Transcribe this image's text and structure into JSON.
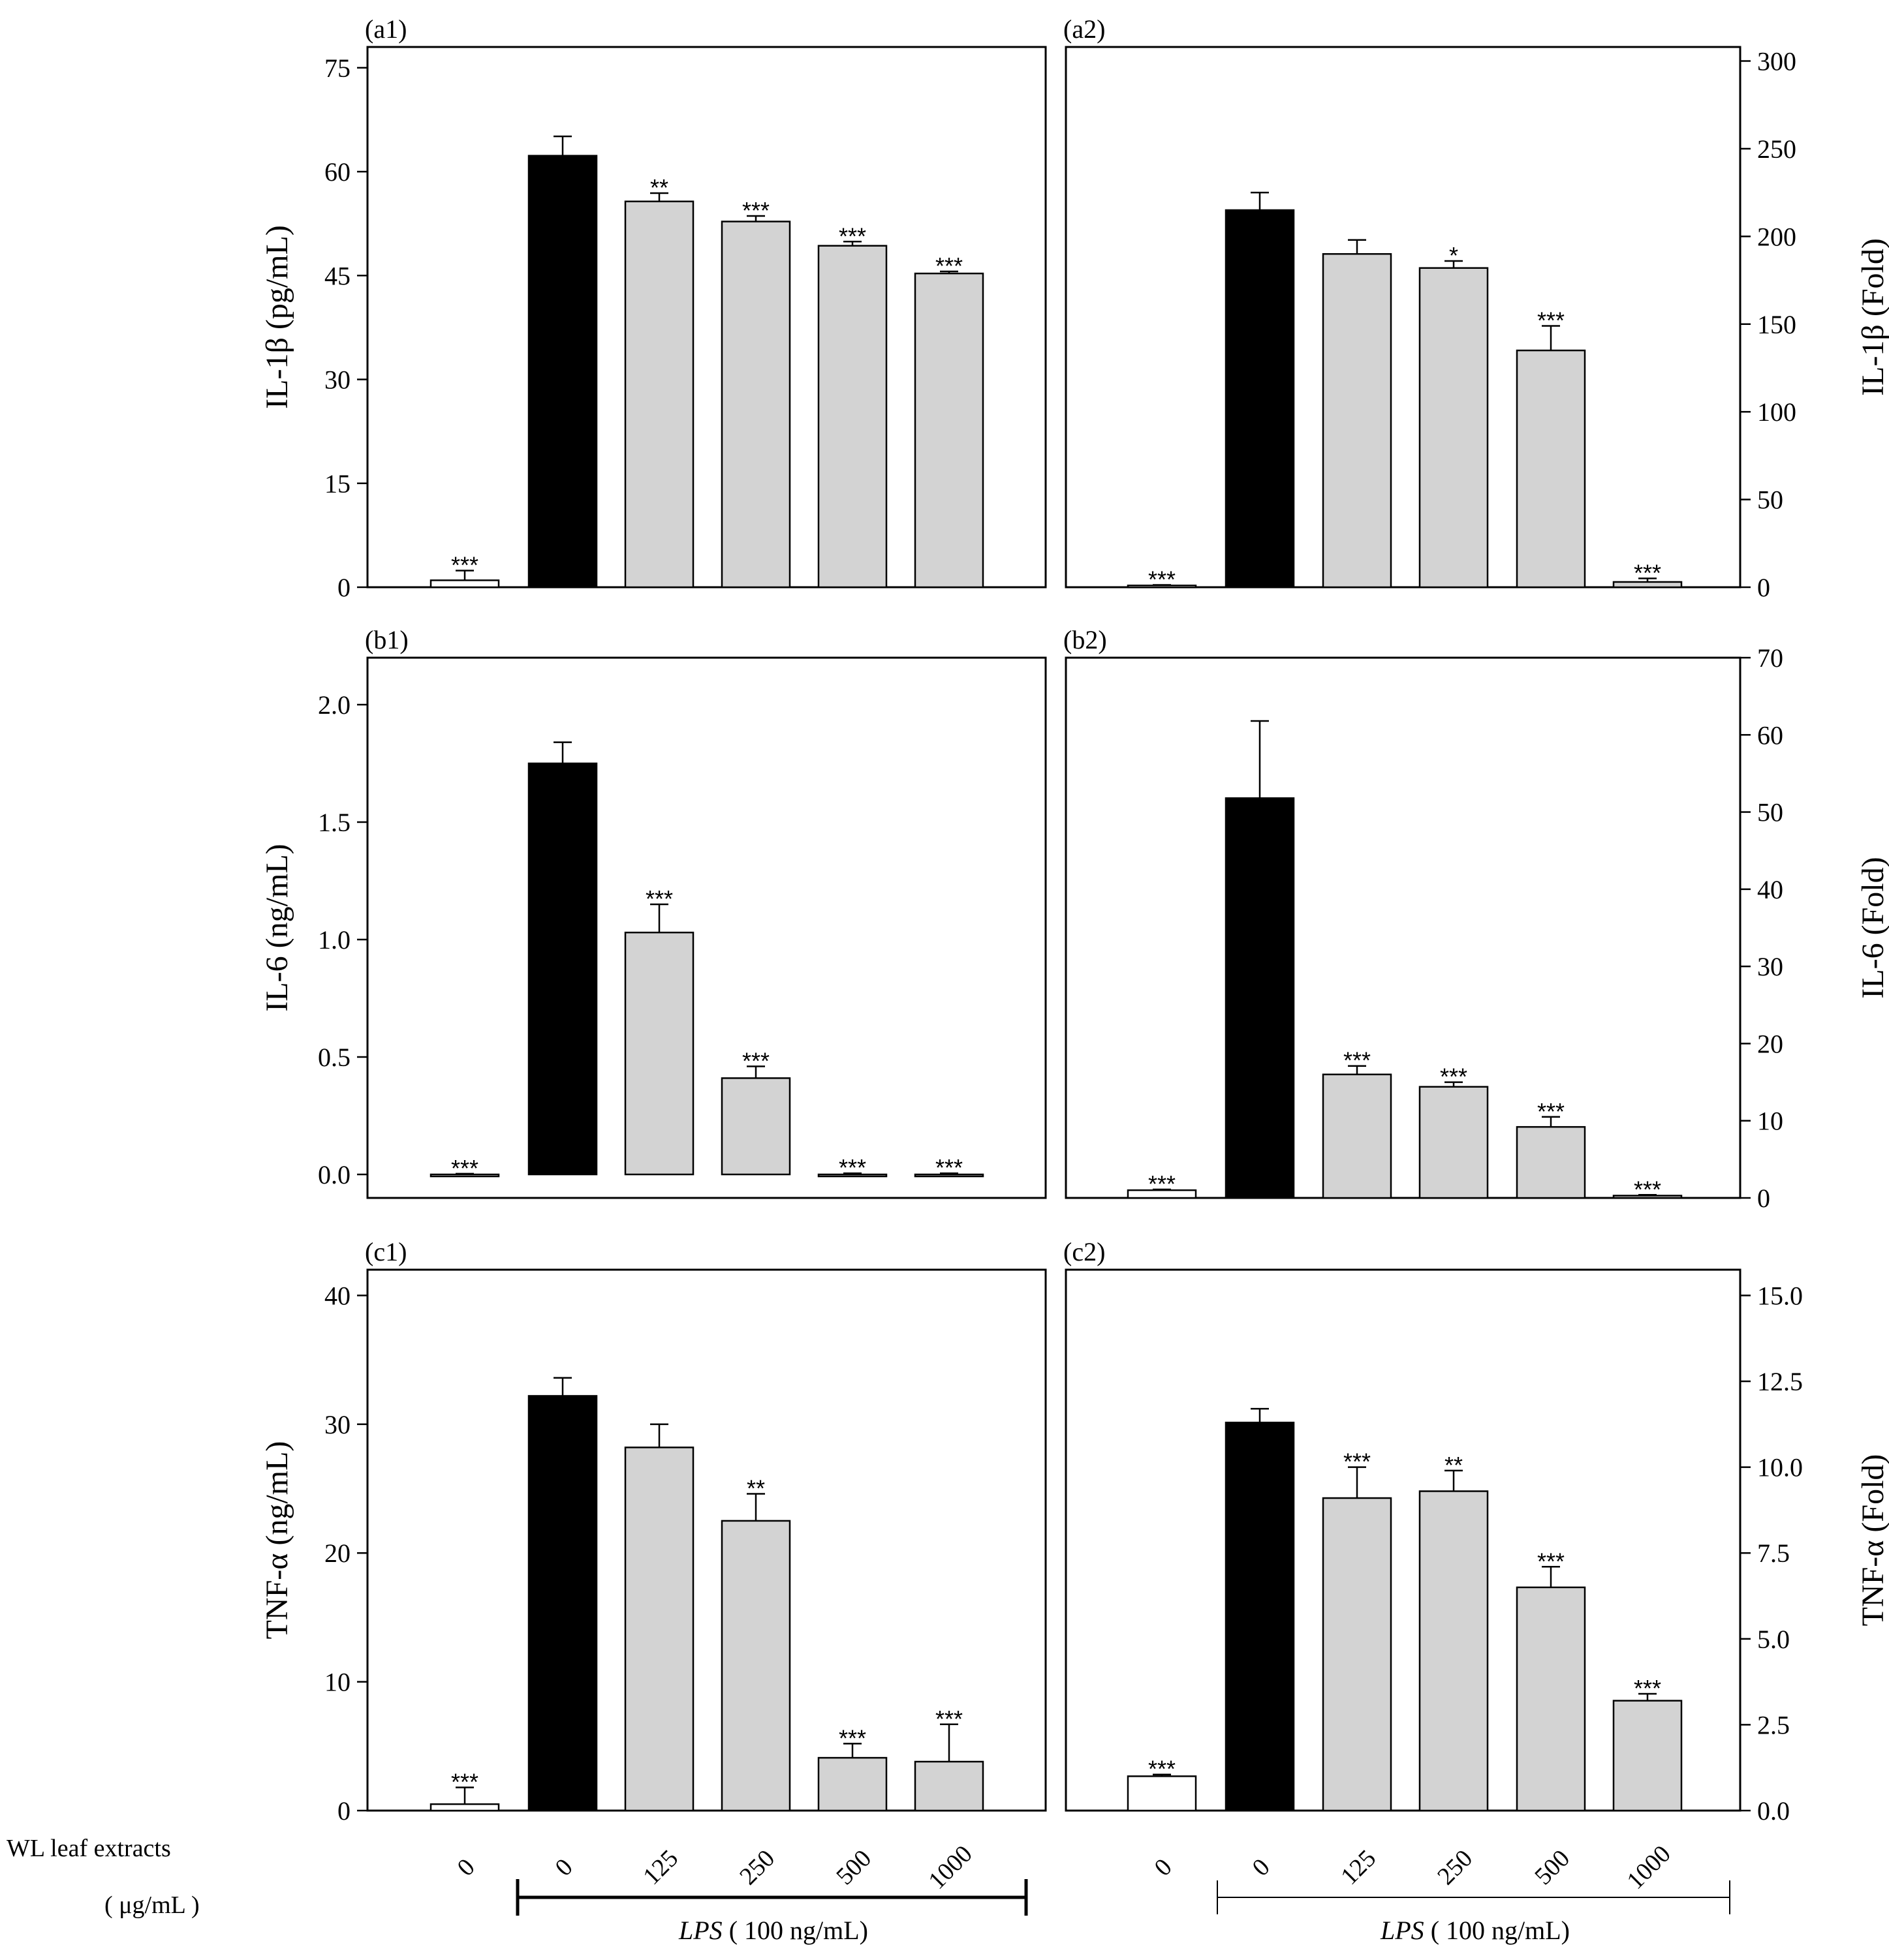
{
  "x_axis": {
    "categories": [
      "0",
      "0",
      "125",
      "250",
      "500",
      "1000"
    ],
    "row_label": "WL leaf extracts",
    "unit_label": "( μg/mL )",
    "lps_label_italic": "LPS",
    "lps_label_rest": "( 100 ng/mL)"
  },
  "colors": {
    "control": "#ffffff",
    "lps": "#000000",
    "treated": "#d3d3d3",
    "stroke": "#000000"
  },
  "chart_data": [
    {
      "type": "bar",
      "panel": "(a1)",
      "ylabel": "IL-1β (pg/mL)",
      "yaxis_side": "left",
      "ylim": [
        0,
        78
      ],
      "yticks": [
        0,
        15,
        30,
        45,
        60,
        75
      ],
      "tick_labels": [
        "0",
        "15",
        "30",
        "45",
        "60",
        "75"
      ],
      "categories": [
        "0",
        "0",
        "125",
        "250",
        "500",
        "1000"
      ],
      "values": [
        1.0,
        62.3,
        55.7,
        52.8,
        49.3,
        45.3
      ],
      "errors": [
        1.4,
        2.8,
        1.2,
        0.8,
        0.6,
        0.3
      ],
      "significance": [
        "***",
        "",
        "**",
        "***",
        "***",
        "***"
      ]
    },
    {
      "type": "bar",
      "panel": "(a2)",
      "ylabel": "IL-1β (Fold)",
      "yaxis_side": "right",
      "ylim": [
        0,
        308
      ],
      "yticks": [
        0,
        50,
        100,
        150,
        200,
        250,
        300
      ],
      "tick_labels": [
        "0",
        "50",
        "100",
        "150",
        "200",
        "250",
        "300"
      ],
      "categories": [
        "0",
        "0",
        "125",
        "250",
        "500",
        "1000"
      ],
      "values": [
        1.0,
        215,
        190,
        182,
        135,
        3.0
      ],
      "errors": [
        0.3,
        10,
        8,
        4,
        14,
        2
      ],
      "significance": [
        "***",
        "",
        "",
        "*",
        "***",
        "***"
      ]
    },
    {
      "type": "bar",
      "panel": "(b1)",
      "ylabel": "IL-6 (ng/mL)",
      "yaxis_side": "left",
      "ylim": [
        -0.1,
        2.2
      ],
      "yticks": [
        0.0,
        0.5,
        1.0,
        1.5,
        2.0
      ],
      "tick_labels": [
        "0.0",
        "0.5",
        "1.0",
        "1.5",
        "2.0"
      ],
      "categories": [
        "0",
        "0",
        "125",
        "250",
        "500",
        "1000"
      ],
      "values": [
        0.0,
        1.75,
        1.03,
        0.41,
        0.0,
        0.0
      ],
      "errors": [
        0.003,
        0.09,
        0.12,
        0.05,
        0.005,
        0.005
      ],
      "significance": [
        "***",
        "",
        "***",
        "***",
        "***",
        "***"
      ]
    },
    {
      "type": "bar",
      "panel": "(b2)",
      "ylabel": "IL-6 (Fold)",
      "yaxis_side": "right",
      "ylim": [
        0,
        70
      ],
      "yticks": [
        0,
        10,
        20,
        30,
        40,
        50,
        60,
        70
      ],
      "tick_labels": [
        "0",
        "10",
        "20",
        "30",
        "40",
        "50",
        "60",
        "70"
      ],
      "categories": [
        "0",
        "0",
        "125",
        "250",
        "500",
        "1000"
      ],
      "values": [
        1.0,
        51.8,
        16.0,
        14.4,
        9.2,
        0.3
      ],
      "errors": [
        0.1,
        10,
        1.1,
        0.6,
        1.3,
        0.1
      ],
      "significance": [
        "***",
        "",
        "***",
        "***",
        "***",
        "***"
      ]
    },
    {
      "type": "bar",
      "panel": "(c1)",
      "ylabel": "TNF-α (ng/mL)",
      "yaxis_side": "left",
      "ylim": [
        0,
        42
      ],
      "yticks": [
        0,
        10,
        20,
        30,
        40
      ],
      "tick_labels": [
        "0",
        "10",
        "20",
        "30",
        "40"
      ],
      "categories": [
        "0",
        "0",
        "125",
        "250",
        "500",
        "1000"
      ],
      "values": [
        0.5,
        32.2,
        28.2,
        22.5,
        4.1,
        3.8
      ],
      "errors": [
        1.3,
        1.4,
        1.8,
        2.1,
        1.1,
        2.9
      ],
      "significance": [
        "***",
        "",
        "",
        "**",
        "***",
        "***"
      ]
    },
    {
      "type": "bar",
      "panel": "(c2)",
      "ylabel": "TNF-α (Fold)",
      "yaxis_side": "right",
      "ylim": [
        0,
        15.75
      ],
      "yticks": [
        0,
        2.5,
        5.0,
        7.5,
        10.0,
        12.5,
        15.0
      ],
      "tick_labels": [
        "0.0",
        "2.5",
        "5.0",
        "7.5",
        "10.0",
        "12.5",
        "15.0"
      ],
      "categories": [
        "0",
        "0",
        "125",
        "250",
        "500",
        "1000"
      ],
      "values": [
        1.0,
        11.3,
        9.1,
        9.3,
        6.5,
        3.2
      ],
      "errors": [
        0.05,
        0.4,
        0.9,
        0.6,
        0.6,
        0.2
      ],
      "significance": [
        "***",
        "",
        "***",
        "**",
        "***",
        "***"
      ]
    }
  ]
}
